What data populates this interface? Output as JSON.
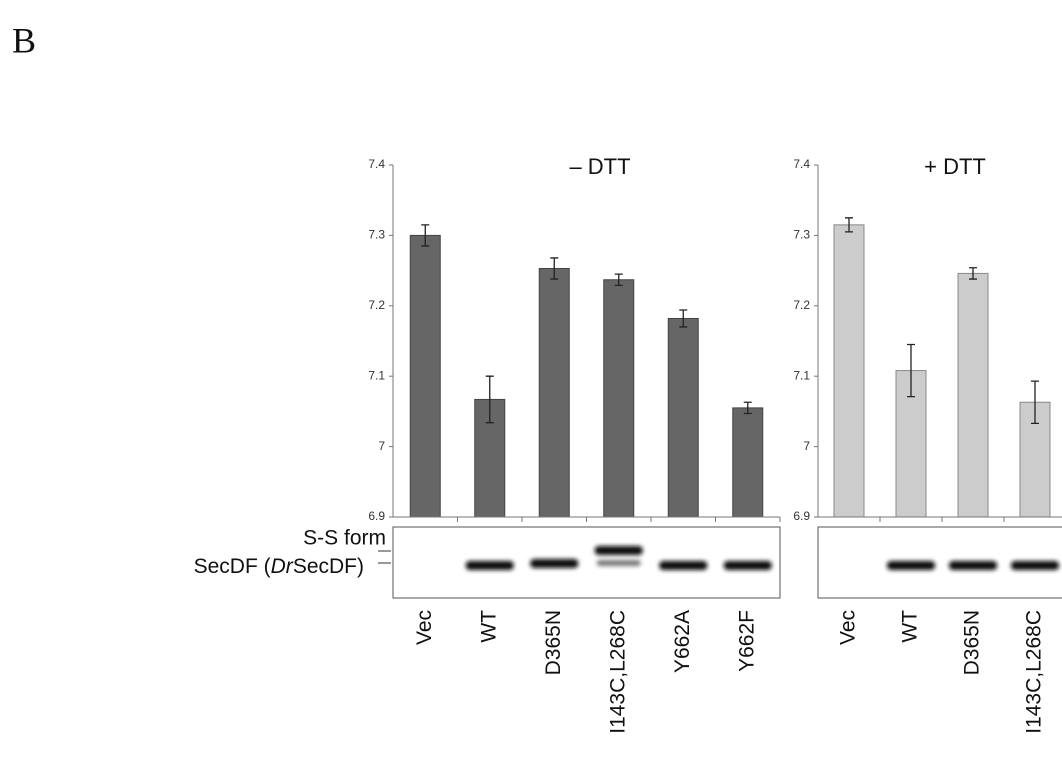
{
  "panel_label": "B",
  "blot": {
    "ss_label": "S-S form",
    "band_label_parts": [
      "SecDF (",
      "Dr",
      "SecDF)"
    ]
  },
  "chart_data": [
    {
      "type": "bar",
      "title": "– DTT",
      "categories": [
        "Vec",
        "WT",
        "D365N",
        "I143C,L268C",
        "Y662A",
        "Y662F"
      ],
      "values": [
        7.3,
        7.067,
        7.253,
        7.237,
        7.182,
        7.055
      ],
      "errors": [
        0.015,
        0.033,
        0.015,
        0.008,
        0.012,
        0.008
      ],
      "color": "#666666",
      "ylim": [
        6.9,
        7.4
      ],
      "yticks": [
        6.9,
        7,
        7.1,
        7.2,
        7.3,
        7.4
      ]
    },
    {
      "type": "bar",
      "title": "+ DTT",
      "categories": [
        "Vec",
        "WT",
        "D365N",
        "I143C,L268C"
      ],
      "values": [
        7.315,
        7.108,
        7.246,
        7.063
      ],
      "errors": [
        0.01,
        0.037,
        0.008,
        0.03
      ],
      "color": "#cccccc",
      "ylim": [
        6.9,
        7.4
      ],
      "yticks": [
        6.9,
        7,
        7.1,
        7.2,
        7.3,
        7.4
      ]
    }
  ]
}
